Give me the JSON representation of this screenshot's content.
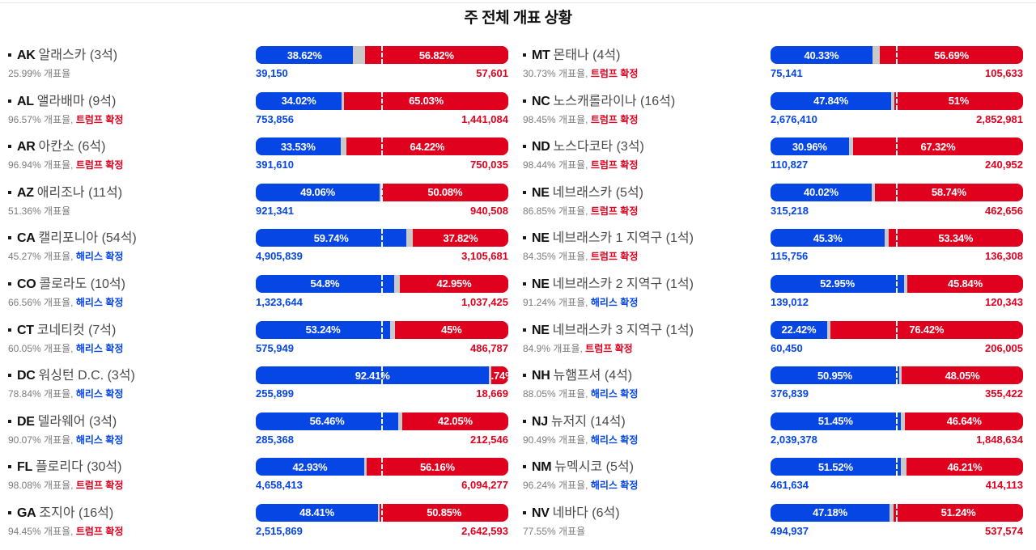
{
  "page": {
    "title": "주 전체 개표 상황"
  },
  "colors": {
    "dem_blue": "#0646e4",
    "rep_red": "#e0011f",
    "undecided_gray": "#c9c9c9"
  },
  "labels": {
    "counted_suffix": "개표율",
    "trump_confirmed": "트럼프 확정",
    "harris_confirmed": "해리스 확정"
  },
  "chart_data": {
    "type": "bar",
    "title": "주 전체 개표 상황",
    "legend_position": "none",
    "xlim": [
      0,
      100
    ],
    "note": "Each row: Democratic (blue, left) vs Republican (red, right) vote share; gray = remainder; white dashed marker at 50%",
    "columns": {
      "left": [
        {
          "code": "AK",
          "name": "알래스카",
          "seats_label": "(3석)",
          "counted_pct": "25.99%",
          "winner": null,
          "dem": {
            "pct": 38.62,
            "pct_label": "38.62%",
            "votes": "39,150"
          },
          "rep": {
            "pct": 56.82,
            "pct_label": "56.82%",
            "votes": "57,601"
          }
        },
        {
          "code": "AL",
          "name": "앨라배마",
          "seats_label": "(9석)",
          "counted_pct": "96.57%",
          "winner": "trump",
          "dem": {
            "pct": 34.02,
            "pct_label": "34.02%",
            "votes": "753,856"
          },
          "rep": {
            "pct": 65.03,
            "pct_label": "65.03%",
            "votes": "1,441,084"
          }
        },
        {
          "code": "AR",
          "name": "아칸소",
          "seats_label": "(6석)",
          "counted_pct": "96.94%",
          "winner": "trump",
          "dem": {
            "pct": 33.53,
            "pct_label": "33.53%",
            "votes": "391,610"
          },
          "rep": {
            "pct": 64.22,
            "pct_label": "64.22%",
            "votes": "750,035"
          }
        },
        {
          "code": "AZ",
          "name": "애리조나",
          "seats_label": "(11석)",
          "counted_pct": "51.36%",
          "winner": null,
          "dem": {
            "pct": 49.06,
            "pct_label": "49.06%",
            "votes": "921,341"
          },
          "rep": {
            "pct": 50.08,
            "pct_label": "50.08%",
            "votes": "940,508"
          }
        },
        {
          "code": "CA",
          "name": "캘리포니아",
          "seats_label": "(54석)",
          "counted_pct": "45.27%",
          "winner": "harris",
          "dem": {
            "pct": 59.74,
            "pct_label": "59.74%",
            "votes": "4,905,839"
          },
          "rep": {
            "pct": 37.82,
            "pct_label": "37.82%",
            "votes": "3,105,681"
          }
        },
        {
          "code": "CO",
          "name": "콜로라도",
          "seats_label": "(10석)",
          "counted_pct": "66.56%",
          "winner": "harris",
          "dem": {
            "pct": 54.8,
            "pct_label": "54.8%",
            "votes": "1,323,644"
          },
          "rep": {
            "pct": 42.95,
            "pct_label": "42.95%",
            "votes": "1,037,425"
          }
        },
        {
          "code": "CT",
          "name": "코네티컷",
          "seats_label": "(7석)",
          "counted_pct": "60.05%",
          "winner": "harris",
          "dem": {
            "pct": 53.24,
            "pct_label": "53.24%",
            "votes": "575,949"
          },
          "rep": {
            "pct": 45,
            "pct_label": "45%",
            "votes": "486,787"
          }
        },
        {
          "code": "DC",
          "name": "워싱턴 D.C.",
          "seats_label": "(3석)",
          "counted_pct": "78.84%",
          "winner": "harris",
          "dem": {
            "pct": 92.41,
            "pct_label": "92.41%",
            "votes": "255,899"
          },
          "rep": {
            "pct": 6.74,
            "pct_label": "6.74%",
            "votes": "18,669"
          }
        },
        {
          "code": "DE",
          "name": "델라웨어",
          "seats_label": "(3석)",
          "counted_pct": "90.07%",
          "winner": "harris",
          "dem": {
            "pct": 56.46,
            "pct_label": "56.46%",
            "votes": "285,368"
          },
          "rep": {
            "pct": 42.05,
            "pct_label": "42.05%",
            "votes": "212,546"
          }
        },
        {
          "code": "FL",
          "name": "플로리다",
          "seats_label": "(30석)",
          "counted_pct": "98.08%",
          "winner": "trump",
          "dem": {
            "pct": 42.93,
            "pct_label": "42.93%",
            "votes": "4,658,413"
          },
          "rep": {
            "pct": 56.16,
            "pct_label": "56.16%",
            "votes": "6,094,277"
          }
        },
        {
          "code": "GA",
          "name": "조지아",
          "seats_label": "(16석)",
          "counted_pct": "94.45%",
          "winner": "trump",
          "dem": {
            "pct": 48.41,
            "pct_label": "48.41%",
            "votes": "2,515,869"
          },
          "rep": {
            "pct": 50.85,
            "pct_label": "50.85%",
            "votes": "2,642,593"
          }
        }
      ],
      "right": [
        {
          "code": "MT",
          "name": "몬태나",
          "seats_label": "(4석)",
          "counted_pct": "30.73%",
          "winner": "trump",
          "dem": {
            "pct": 40.33,
            "pct_label": "40.33%",
            "votes": "75,141"
          },
          "rep": {
            "pct": 56.69,
            "pct_label": "56.69%",
            "votes": "105,633"
          }
        },
        {
          "code": "NC",
          "name": "노스캐롤라이나",
          "seats_label": "(16석)",
          "counted_pct": "98.45%",
          "winner": "trump",
          "dem": {
            "pct": 47.84,
            "pct_label": "47.84%",
            "votes": "2,676,410"
          },
          "rep": {
            "pct": 51,
            "pct_label": "51%",
            "votes": "2,852,981"
          }
        },
        {
          "code": "ND",
          "name": "노스다코타",
          "seats_label": "(3석)",
          "counted_pct": "98.44%",
          "winner": "trump",
          "dem": {
            "pct": 30.96,
            "pct_label": "30.96%",
            "votes": "110,827"
          },
          "rep": {
            "pct": 67.32,
            "pct_label": "67.32%",
            "votes": "240,952"
          }
        },
        {
          "code": "NE",
          "name": "네브래스카",
          "seats_label": "(5석)",
          "counted_pct": "86.85%",
          "winner": "trump",
          "dem": {
            "pct": 40.02,
            "pct_label": "40.02%",
            "votes": "315,218"
          },
          "rep": {
            "pct": 58.74,
            "pct_label": "58.74%",
            "votes": "462,656"
          }
        },
        {
          "code": "NE",
          "name": "네브래스카 1 지역구",
          "seats_label": "(1석)",
          "counted_pct": "84.35%",
          "winner": "trump",
          "dem": {
            "pct": 45.3,
            "pct_label": "45.3%",
            "votes": "115,756"
          },
          "rep": {
            "pct": 53.34,
            "pct_label": "53.34%",
            "votes": "136,308"
          }
        },
        {
          "code": "NE",
          "name": "네브래스카 2 지역구",
          "seats_label": "(1석)",
          "counted_pct": "91.24%",
          "winner": "harris",
          "dem": {
            "pct": 52.95,
            "pct_label": "52.95%",
            "votes": "139,012"
          },
          "rep": {
            "pct": 45.84,
            "pct_label": "45.84%",
            "votes": "120,343"
          }
        },
        {
          "code": "NE",
          "name": "네브래스카 3 지역구",
          "seats_label": "(1석)",
          "counted_pct": "84.9%",
          "winner": "trump",
          "dem": {
            "pct": 22.42,
            "pct_label": "22.42%",
            "votes": "60,450"
          },
          "rep": {
            "pct": 76.42,
            "pct_label": "76.42%",
            "votes": "206,005"
          }
        },
        {
          "code": "NH",
          "name": "뉴햄프셔",
          "seats_label": "(4석)",
          "counted_pct": "88.05%",
          "winner": "harris",
          "dem": {
            "pct": 50.95,
            "pct_label": "50.95%",
            "votes": "376,839"
          },
          "rep": {
            "pct": 48.05,
            "pct_label": "48.05%",
            "votes": "355,422"
          }
        },
        {
          "code": "NJ",
          "name": "뉴저지",
          "seats_label": "(14석)",
          "counted_pct": "90.49%",
          "winner": "harris",
          "dem": {
            "pct": 51.45,
            "pct_label": "51.45%",
            "votes": "2,039,378"
          },
          "rep": {
            "pct": 46.64,
            "pct_label": "46.64%",
            "votes": "1,848,634"
          }
        },
        {
          "code": "NM",
          "name": "뉴멕시코",
          "seats_label": "(5석)",
          "counted_pct": "96.24%",
          "winner": "harris",
          "dem": {
            "pct": 51.52,
            "pct_label": "51.52%",
            "votes": "461,634"
          },
          "rep": {
            "pct": 46.21,
            "pct_label": "46.21%",
            "votes": "414,113"
          }
        },
        {
          "code": "NV",
          "name": "네바다",
          "seats_label": "(6석)",
          "counted_pct": "77.55%",
          "winner": null,
          "dem": {
            "pct": 47.18,
            "pct_label": "47.18%",
            "votes": "494,937"
          },
          "rep": {
            "pct": 51.24,
            "pct_label": "51.24%",
            "votes": "537,574"
          }
        }
      ]
    }
  }
}
